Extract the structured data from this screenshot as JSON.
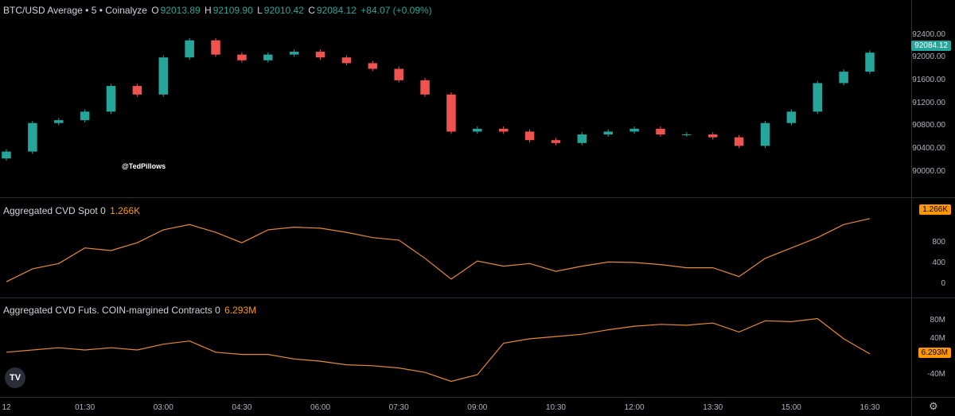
{
  "header": {
    "symbol": "BTC/USD Average • 5 • Coinalyze",
    "o_label": "O",
    "o_value": "92013.89",
    "h_label": "H",
    "h_value": "92109.90",
    "l_label": "L",
    "l_value": "92010.42",
    "c_label": "C",
    "c_value": "92084.12",
    "change": "+84.07 (+0.09%)"
  },
  "watermark": "@TedPillows",
  "logo": "TV",
  "colors": {
    "up": "#26a69a",
    "down": "#ef5350",
    "line": "#e58a3a",
    "accent": "#ff9800"
  },
  "chart_data": [
    {
      "type": "candlestick",
      "title": "BTC/USD Average • 5 • Coinalyze",
      "ylim": [
        89800,
        92700
      ],
      "y_ticks": [
        "92400.00",
        "92000.00",
        "91600.00",
        "91200.00",
        "90800.00",
        "90400.00",
        "90000.00"
      ],
      "last_value": "92084.12",
      "x": [
        "00:00",
        "00:30",
        "01:00",
        "01:30",
        "02:00",
        "02:30",
        "03:00",
        "03:30",
        "04:00",
        "04:30",
        "05:00",
        "05:30",
        "06:00",
        "06:30",
        "07:00",
        "07:30",
        "08:00",
        "08:30",
        "09:00",
        "09:30",
        "10:00",
        "10:30",
        "11:00",
        "11:30",
        "12:00",
        "12:30",
        "13:00",
        "13:30",
        "14:00",
        "14:30",
        "15:00",
        "15:30",
        "16:00",
        "16:30"
      ],
      "close": [
        90350,
        90850,
        90900,
        91050,
        91500,
        91350,
        92000,
        92300,
        92050,
        91950,
        92050,
        92100,
        92000,
        91900,
        91800,
        91600,
        91350,
        90700,
        90750,
        90700,
        90550,
        90500,
        90650,
        90700,
        90750,
        90650,
        90650,
        90600,
        90450,
        90850,
        91050,
        91550,
        91750,
        92084
      ]
    },
    {
      "type": "line",
      "title": "Aggregated CVD Spot 0",
      "last_value": "1.266K",
      "ylim": [
        -100,
        1400
      ],
      "y_ticks": [
        "800",
        "400",
        "0"
      ],
      "x": [
        "00:00",
        "00:30",
        "01:00",
        "01:30",
        "02:00",
        "02:30",
        "03:00",
        "03:30",
        "04:00",
        "04:30",
        "05:00",
        "05:30",
        "06:00",
        "06:30",
        "07:00",
        "07:30",
        "08:00",
        "08:30",
        "09:00",
        "09:30",
        "10:00",
        "10:30",
        "11:00",
        "11:30",
        "12:00",
        "12:30",
        "13:00",
        "13:30",
        "14:00",
        "14:30",
        "15:00",
        "15:30",
        "16:00",
        "16:30"
      ],
      "values": [
        50,
        300,
        400,
        700,
        650,
        800,
        1050,
        1150,
        1000,
        800,
        1050,
        1100,
        1080,
        1000,
        900,
        850,
        500,
        100,
        450,
        350,
        400,
        250,
        350,
        430,
        420,
        380,
        320,
        320,
        150,
        500,
        700,
        900,
        1150,
        1266
      ]
    },
    {
      "type": "line",
      "title": "Aggregated CVD Futs. COIN-margined Contracts 0",
      "last_value": "6.293M",
      "ylim": [
        -70,
        100
      ],
      "y_ticks": [
        "80M",
        "40M",
        "-40M"
      ],
      "x": [
        "00:00",
        "00:30",
        "01:00",
        "01:30",
        "02:00",
        "02:30",
        "03:00",
        "03:30",
        "04:00",
        "04:30",
        "05:00",
        "05:30",
        "06:00",
        "06:30",
        "07:00",
        "07:30",
        "08:00",
        "08:30",
        "09:00",
        "09:30",
        "10:00",
        "10:30",
        "11:00",
        "11:30",
        "12:00",
        "12:30",
        "13:00",
        "13:30",
        "14:00",
        "14:30",
        "15:00",
        "15:30",
        "16:00",
        "16:30"
      ],
      "values": [
        10,
        15,
        20,
        15,
        20,
        15,
        28,
        35,
        10,
        5,
        5,
        -5,
        -10,
        -18,
        -20,
        -25,
        -35,
        -55,
        -40,
        30,
        40,
        45,
        50,
        60,
        68,
        72,
        70,
        75,
        55,
        80,
        78,
        85,
        40,
        6.293
      ]
    }
  ],
  "x_axis": {
    "ticks": [
      "12",
      "01:30",
      "03:00",
      "04:30",
      "06:00",
      "07:30",
      "09:00",
      "10:30",
      "12:00",
      "13:30",
      "15:00",
      "16:30"
    ],
    "tick_positions": [
      "00:00",
      "01:30",
      "03:00",
      "04:30",
      "06:00",
      "07:30",
      "09:00",
      "10:30",
      "12:00",
      "13:30",
      "15:00",
      "16:30"
    ]
  }
}
